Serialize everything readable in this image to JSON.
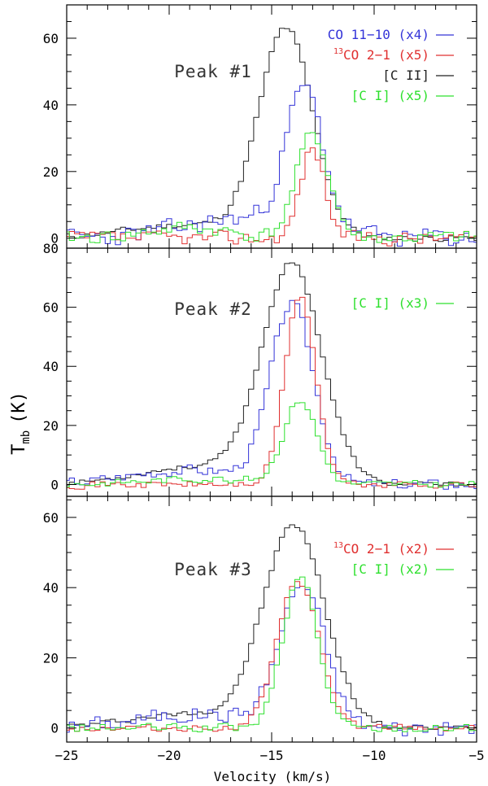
{
  "chart_data": {
    "type": "line",
    "step": true,
    "xlabel": "Velocity (km/s)",
    "ylabel": "T",
    "ylabel_sub": "mb",
    "ylabel_unit": "(K)",
    "xlim": [
      -25,
      -5
    ],
    "xticks": [
      -25,
      -20,
      -15,
      -10,
      -5
    ],
    "xtick_labels": [
      "−25",
      "−20",
      "−15",
      "−10",
      "−5"
    ],
    "colors": {
      "CO": "#3434d8",
      "13CO": "#e03030",
      "CII": "#222222",
      "CI": "#2ee02e"
    },
    "panels": [
      {
        "title": "Peak #1",
        "ylim": [
          -3,
          70
        ],
        "yticks": [
          0,
          20,
          40,
          60
        ],
        "legend": [
          {
            "series": "CO",
            "pre": "",
            "sup": "",
            "text": "CO 11−10 (x4)"
          },
          {
            "series": "13CO",
            "pre": "",
            "sup": "13",
            "text": "CO 2−1 (x5)"
          },
          {
            "series": "CII",
            "pre": "",
            "sup": "",
            "text": "[C II]"
          },
          {
            "series": "CI",
            "pre": "",
            "sup": "",
            "text": "[C I] (x5)"
          }
        ],
        "series": [
          {
            "name": "CII",
            "center": -14.3,
            "amp": 62,
            "sigma": 1.3,
            "wing_amp": 4,
            "wing_center": -19,
            "wing_sigma": 3,
            "noise": 1.2,
            "seed": 11
          },
          {
            "name": "CO",
            "center": -13.4,
            "amp": 41,
            "sigma": 0.9,
            "wing_amp": 6,
            "wing_center": -16,
            "wing_sigma": 3,
            "noise": 3.5,
            "seed": 23
          },
          {
            "name": "13CO",
            "center": -13.0,
            "amp": 27,
            "sigma": 0.6,
            "wing_amp": 0,
            "wing_center": -16,
            "wing_sigma": 3,
            "noise": 2.5,
            "seed": 37
          },
          {
            "name": "CI",
            "center": -13.0,
            "amp": 31,
            "sigma": 0.8,
            "wing_amp": 3,
            "wing_center": -19,
            "wing_sigma": 2,
            "noise": 2.5,
            "seed": 41
          }
        ]
      },
      {
        "title": "Peak #2",
        "ylim": [
          -4,
          80
        ],
        "yticks": [
          0,
          20,
          40,
          60,
          80
        ],
        "legend": [
          {
            "series": "CI",
            "pre": "",
            "sup": "",
            "text": "[C I] (x3)"
          }
        ],
        "series": [
          {
            "name": "CII",
            "center": -14.0,
            "amp": 73,
            "sigma": 1.45,
            "wing_amp": 6,
            "wing_center": -18.5,
            "wing_sigma": 3,
            "noise": 1.0,
            "seed": 53
          },
          {
            "name": "CO",
            "center": -14.0,
            "amp": 60,
            "sigma": 1.05,
            "wing_amp": 5,
            "wing_center": -19,
            "wing_sigma": 3,
            "noise": 2.2,
            "seed": 67
          },
          {
            "name": "13CO",
            "center": -13.6,
            "amp": 64,
            "sigma": 0.75,
            "wing_amp": 0,
            "wing_center": -16,
            "wing_sigma": 3,
            "noise": 1.5,
            "seed": 71
          },
          {
            "name": "CI",
            "center": -13.6,
            "amp": 28,
            "sigma": 0.8,
            "wing_amp": 2,
            "wing_center": -18,
            "wing_sigma": 3,
            "noise": 1.5,
            "seed": 83
          }
        ]
      },
      {
        "title": "Peak #3",
        "ylim": [
          -4,
          66
        ],
        "yticks": [
          0,
          20,
          40,
          60
        ],
        "legend": [
          {
            "series": "13CO",
            "pre": "",
            "sup": "13",
            "text": "CO 2−1 (x2)"
          },
          {
            "series": "CI",
            "pre": "",
            "sup": "",
            "text": "[C I] (x2)"
          }
        ],
        "series": [
          {
            "name": "CII",
            "center": -13.9,
            "amp": 57,
            "sigma": 1.5,
            "wing_amp": 4,
            "wing_center": -19,
            "wing_sigma": 3,
            "noise": 1.0,
            "seed": 97
          },
          {
            "name": "CO",
            "center": -13.5,
            "amp": 40,
            "sigma": 1.1,
            "wing_amp": 4,
            "wing_center": -18.5,
            "wing_sigma": 3,
            "noise": 2.8,
            "seed": 101
          },
          {
            "name": "13CO",
            "center": -13.7,
            "amp": 42,
            "sigma": 1.0,
            "wing_amp": 0,
            "wing_center": -16,
            "wing_sigma": 3,
            "noise": 1.2,
            "seed": 113
          },
          {
            "name": "CI",
            "center": -13.6,
            "amp": 43,
            "sigma": 0.85,
            "wing_amp": 0,
            "wing_center": -16,
            "wing_sigma": 3,
            "noise": 1.5,
            "seed": 127
          }
        ]
      }
    ]
  }
}
